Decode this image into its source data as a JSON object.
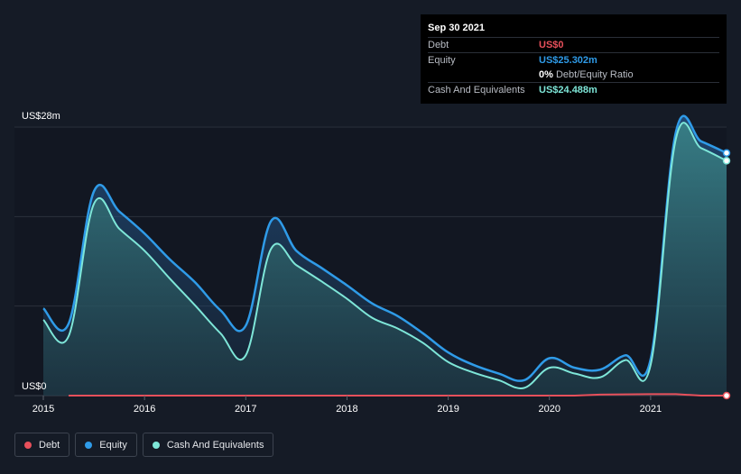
{
  "chart_data": {
    "type": "area",
    "y_top_label": "US$28m",
    "y_bottom_label": "US$0",
    "ylim": [
      0,
      28
    ],
    "xlim": [
      2015,
      2021.75
    ],
    "x_ticks": [
      "2015",
      "2016",
      "2017",
      "2018",
      "2019",
      "2020",
      "2021"
    ],
    "grid": true,
    "series": [
      {
        "name": "Debt",
        "color": "#e8505b",
        "x": [
          2015.25,
          2020.25,
          2020.5,
          2021.0,
          2021.25,
          2021.5,
          2021.75
        ],
        "y": [
          0,
          0,
          0.1,
          0.15,
          0.15,
          0,
          0
        ]
      },
      {
        "name": "Equity",
        "color": "#2f9be8",
        "x": [
          2015.0,
          2015.25,
          2015.5,
          2015.75,
          2016.0,
          2016.25,
          2016.5,
          2016.75,
          2017.0,
          2017.25,
          2017.5,
          2017.75,
          2018.0,
          2018.25,
          2018.5,
          2018.75,
          2019.0,
          2019.25,
          2019.5,
          2019.75,
          2020.0,
          2020.25,
          2020.5,
          2020.75,
          2021.0,
          2021.25,
          2021.5,
          2021.75
        ],
        "y": [
          9.1,
          7.5,
          21.3,
          19.2,
          16.9,
          14.2,
          11.8,
          8.9,
          7.3,
          18.2,
          15.1,
          13.3,
          11.5,
          9.6,
          8.3,
          6.5,
          4.5,
          3.2,
          2.3,
          1.6,
          3.9,
          2.9,
          2.7,
          4.2,
          3.8,
          27.5,
          26.5,
          25.302
        ]
      },
      {
        "name": "Cash And Equivalents",
        "color": "#7ee6d8",
        "x": [
          2015.0,
          2015.25,
          2015.5,
          2015.75,
          2016.0,
          2016.25,
          2016.5,
          2016.75,
          2017.0,
          2017.25,
          2017.5,
          2017.75,
          2018.0,
          2018.25,
          2018.5,
          2018.75,
          2019.0,
          2019.25,
          2019.5,
          2019.75,
          2020.0,
          2020.25,
          2020.5,
          2020.75,
          2021.0,
          2021.25,
          2021.5,
          2021.75
        ],
        "y": [
          7.9,
          6.2,
          20.0,
          17.4,
          15.1,
          12.2,
          9.4,
          6.5,
          4.2,
          15.3,
          13.6,
          11.9,
          10.1,
          8.1,
          7.0,
          5.5,
          3.5,
          2.4,
          1.6,
          0.8,
          2.9,
          2.3,
          1.9,
          3.7,
          3.2,
          26.8,
          25.8,
          24.488
        ]
      }
    ]
  },
  "tooltip": {
    "date": "Sep 30 2021",
    "debt_label": "Debt",
    "debt_value": "US$0",
    "equity_label": "Equity",
    "equity_value": "US$25.302m",
    "ratio_value": "0%",
    "ratio_label": "Debt/Equity Ratio",
    "cash_label": "Cash And Equivalents",
    "cash_value": "US$24.488m"
  },
  "legend": [
    {
      "label": "Debt",
      "color": "#e8505b"
    },
    {
      "label": "Equity",
      "color": "#2f9be8"
    },
    {
      "label": "Cash And Equivalents",
      "color": "#7ee6d8"
    }
  ]
}
